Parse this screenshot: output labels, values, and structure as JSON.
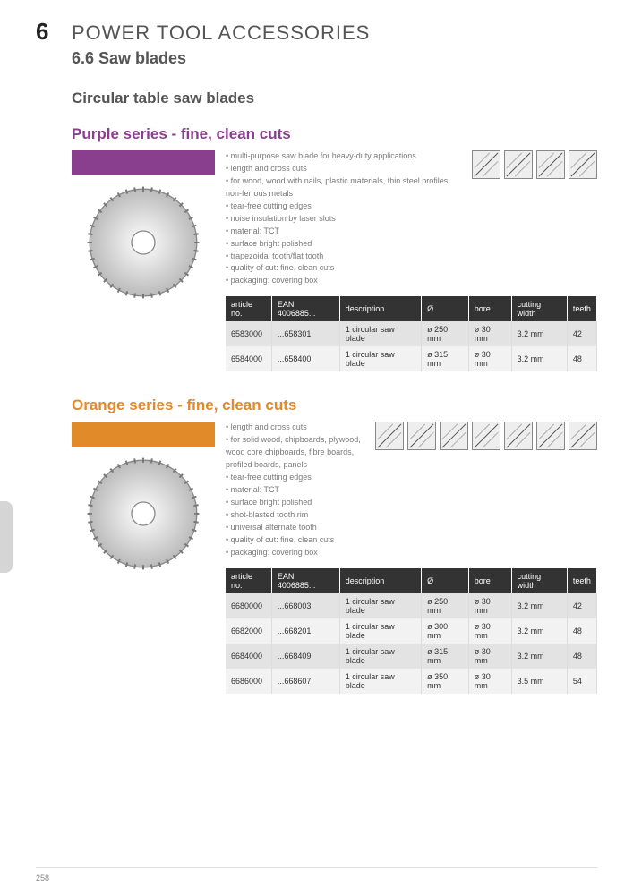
{
  "chapter": {
    "num": "6",
    "title": "POWER TOOL ACCESSORIES"
  },
  "section": "6.6 Saw blades",
  "subheading": "Circular table saw blades",
  "page_number": "258",
  "purple": {
    "title": "Purple series - fine, clean cuts",
    "swatch_color": "#8a3f8e",
    "features": [
      "multi-purpose saw blade for heavy-duty applications",
      "length and cross cuts",
      "for wood, wood with nails, plastic materials, thin steel profiles, non-ferrous metals",
      "tear-free cutting edges",
      "noise insulation by laser slots",
      "material: TCT",
      "surface bright polished",
      "trapezoidal tooth/flat tooth",
      "quality of cut: fine, clean cuts",
      "packaging: covering box"
    ],
    "icon_count": 4,
    "table": {
      "headers": [
        "article no.",
        "EAN 4006885...",
        "description",
        "Ø",
        "bore",
        "cutting width",
        "teeth"
      ],
      "rows": [
        [
          "6583000",
          "...658301",
          "1 circular saw blade",
          "ø 250 mm",
          "ø 30 mm",
          "3.2 mm",
          "42"
        ],
        [
          "6584000",
          "...658400",
          "1 circular saw blade",
          "ø 315 mm",
          "ø 30 mm",
          "3.2 mm",
          "48"
        ]
      ]
    }
  },
  "orange": {
    "title": "Orange series - fine, clean cuts",
    "swatch_color": "#e08a2a",
    "features": [
      "length and cross cuts",
      "for solid wood, chipboards, plywood, wood core chipboards, fibre boards, profiled boards, panels",
      "tear-free cutting edges",
      "material: TCT",
      "surface bright polished",
      "shot-blasted tooth rim",
      "universal alternate tooth",
      "quality of cut: fine, clean cuts",
      "packaging: covering box"
    ],
    "icon_count": 7,
    "table": {
      "headers": [
        "article no.",
        "EAN 4006885...",
        "description",
        "Ø",
        "bore",
        "cutting width",
        "teeth"
      ],
      "rows": [
        [
          "6680000",
          "...668003",
          "1 circular saw blade",
          "ø 250 mm",
          "ø 30 mm",
          "3.2 mm",
          "42"
        ],
        [
          "6682000",
          "...668201",
          "1 circular saw blade",
          "ø 300 mm",
          "ø 30 mm",
          "3.2 mm",
          "48"
        ],
        [
          "6684000",
          "...668409",
          "1 circular saw blade",
          "ø 315 mm",
          "ø 30 mm",
          "3.2 mm",
          "48"
        ],
        [
          "6686000",
          "...668607",
          "1 circular saw blade",
          "ø 350 mm",
          "ø 30 mm",
          "3.5 mm",
          "54"
        ]
      ]
    }
  }
}
